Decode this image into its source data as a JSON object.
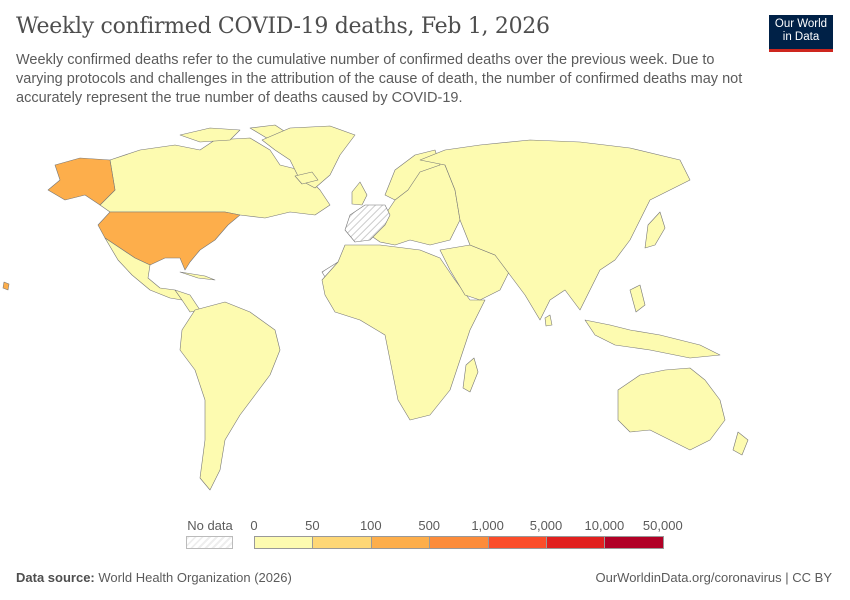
{
  "header": {
    "title": "Weekly confirmed COVID-19 deaths, Feb 1, 2026",
    "subtitle": "Weekly confirmed deaths refer to the cumulative number of confirmed deaths over the previous week. Due to varying protocols and challenges in the attribution of the cause of death, the number of confirmed deaths may not accurately represent the true number of deaths caused by COVID-19.",
    "logo_line1": "Our World",
    "logo_line2": "in Data"
  },
  "legend": {
    "no_data_label": "No data",
    "ticks": [
      "0",
      "50",
      "100",
      "500",
      "1,000",
      "5,000",
      "10,000",
      "50,000"
    ],
    "bin_colors": [
      "#fdfbb0",
      "#fed776",
      "#fdae4b",
      "#fc8c3b",
      "#fb4d2a",
      "#e1201e",
      "#b10026"
    ],
    "no_data_color": "#eeeeee"
  },
  "map_data": {
    "default_bin": "0–50",
    "highlighted": [
      {
        "region": "United States",
        "bin": "100–500",
        "color": "#fdae4b"
      }
    ],
    "no_data_regions": [
      "Spain",
      "France",
      "Western Sahara"
    ]
  },
  "footer": {
    "source_label": "Data source:",
    "source": "World Health Organization (2026)",
    "link": "OurWorldinData.org/coronavirus | CC BY"
  }
}
